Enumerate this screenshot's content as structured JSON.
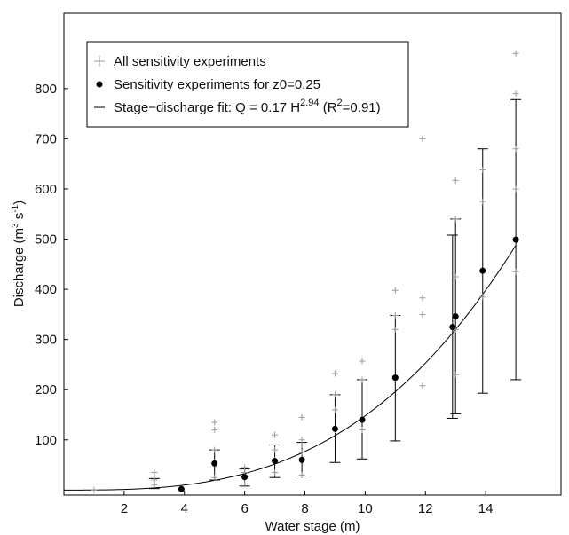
{
  "chart_data": {
    "type": "scatter",
    "title": "",
    "xlabel": "Water stage (m)",
    "ylabel_main": "Discharge (m",
    "ylabel_sup1": "3",
    "ylabel_mid": " s",
    "ylabel_sup2": "-1",
    "ylabel_end": ")",
    "xlim": [
      0,
      16.5
    ],
    "ylim": [
      -10,
      950
    ],
    "xticks": [
      2,
      4,
      6,
      8,
      10,
      12,
      14
    ],
    "yticks": [
      100,
      200,
      300,
      400,
      500,
      600,
      700,
      800
    ],
    "grid": false,
    "legend_position": "top-left",
    "legend": {
      "all_label": "All sensitivity experiments",
      "z0_label": "Sensitivity experiments for z0=0.25",
      "fit_label_main": "Stage−discharge fit: Q = 0.17 H",
      "fit_label_exp": "2.94",
      "fit_label_mid": " (R",
      "fit_label_sup": "2",
      "fit_label_end": "=0.91)"
    },
    "series": [
      {
        "name": "All sensitivity experiments",
        "marker": "plus",
        "points": [
          [
            1,
            0
          ],
          [
            3,
            10
          ],
          [
            3,
            20
          ],
          [
            3,
            28
          ],
          [
            3,
            35
          ],
          [
            5,
            25
          ],
          [
            5,
            55
          ],
          [
            5,
            80
          ],
          [
            5,
            120
          ],
          [
            5,
            135
          ],
          [
            6,
            12
          ],
          [
            6,
            25
          ],
          [
            6,
            35
          ],
          [
            6,
            45
          ],
          [
            7,
            35
          ],
          [
            7,
            60
          ],
          [
            7,
            80
          ],
          [
            7,
            110
          ],
          [
            7.9,
            30
          ],
          [
            7.9,
            75
          ],
          [
            7.9,
            90
          ],
          [
            7.9,
            100
          ],
          [
            7.9,
            145
          ],
          [
            9,
            120
          ],
          [
            9,
            160
          ],
          [
            9,
            190
          ],
          [
            9,
            232
          ],
          [
            9.9,
            120
          ],
          [
            9.9,
            140
          ],
          [
            9.9,
            220
          ],
          [
            9.9,
            257
          ],
          [
            11,
            223
          ],
          [
            11,
            320
          ],
          [
            11,
            348
          ],
          [
            11,
            398
          ],
          [
            11.9,
            208
          ],
          [
            11.9,
            350
          ],
          [
            11.9,
            383
          ],
          [
            11.9,
            700
          ],
          [
            13,
            230
          ],
          [
            13,
            320
          ],
          [
            13,
            425
          ],
          [
            13,
            540
          ],
          [
            13,
            617
          ],
          [
            13.9,
            385
          ],
          [
            13.9,
            575
          ],
          [
            13.9,
            638
          ],
          [
            15,
            435
          ],
          [
            15,
            600
          ],
          [
            15,
            680
          ],
          [
            15,
            790
          ],
          [
            15,
            870
          ]
        ]
      },
      {
        "name": "Sensitivity experiments for z0=0.25",
        "marker": "dot",
        "points": [
          [
            3.9,
            2
          ],
          [
            5,
            53
          ],
          [
            6,
            26
          ],
          [
            7,
            58
          ],
          [
            7.9,
            60
          ],
          [
            9,
            122
          ],
          [
            9.9,
            140
          ],
          [
            11,
            224
          ],
          [
            12.9,
            325
          ],
          [
            13,
            346
          ],
          [
            13.9,
            437
          ],
          [
            15,
            499
          ]
        ],
        "error_bars": [
          [
            3,
            3,
            23
          ],
          [
            5,
            20,
            80
          ],
          [
            6,
            8,
            42
          ],
          [
            7,
            25,
            90
          ],
          [
            7.9,
            28,
            95
          ],
          [
            9,
            55,
            190
          ],
          [
            9.9,
            62,
            220
          ],
          [
            11,
            98,
            348
          ],
          [
            12.9,
            143,
            508
          ],
          [
            13,
            152,
            540
          ],
          [
            13.9,
            193,
            680
          ],
          [
            15,
            220,
            778
          ]
        ]
      }
    ],
    "fit": {
      "coefficient": 0.17,
      "exponent": 2.94,
      "x_range": [
        0,
        15
      ]
    }
  }
}
